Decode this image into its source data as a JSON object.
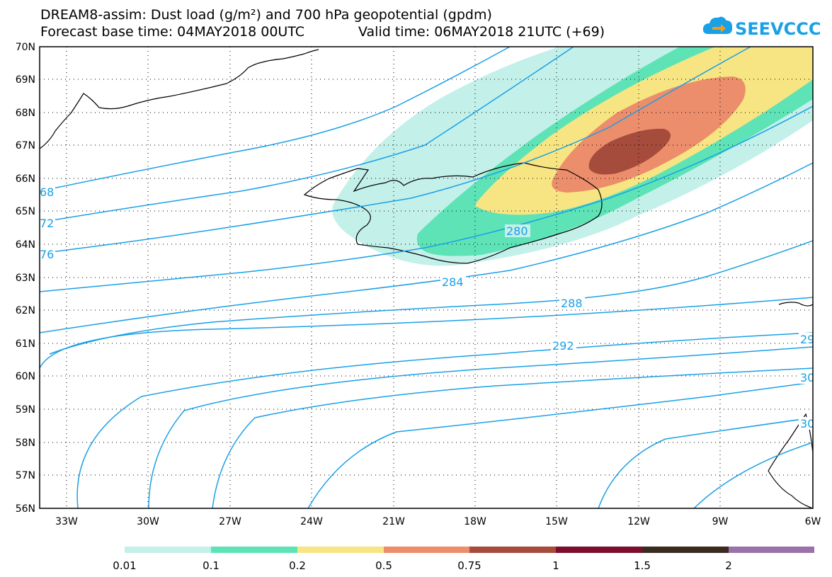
{
  "header": {
    "title": "DREAM8-assim: Dust load (g/m²) and 700 hPa geopotential (gpdm)",
    "forecast_base": "Forecast base time: 04MAY2018 00UTC",
    "valid_time": "Valid time: 06MAY2018 21UTC (+69)"
  },
  "logo": {
    "text": "SEEVCCC",
    "icon": "cloud-arrow-icon",
    "color": "#1aa0e6"
  },
  "map": {
    "lat_labels": [
      "70N",
      "69N",
      "68N",
      "67N",
      "66N",
      "65N",
      "64N",
      "63N",
      "62N",
      "61N",
      "60N",
      "59N",
      "58N",
      "57N",
      "56N"
    ],
    "lon_labels": [
      "33W",
      "30W",
      "27W",
      "24W",
      "21W",
      "18W",
      "15W",
      "12W",
      "9W",
      "6W"
    ],
    "lat_range": [
      56,
      70
    ],
    "lon_range": [
      -34.5,
      -6
    ],
    "grid": "dotted",
    "contour_color": "#1aa0e6",
    "contour_labels": [
      "68",
      "72",
      "76",
      "280",
      "284",
      "288",
      "292",
      "29",
      "30",
      "30"
    ],
    "land_outline_color": "#000000"
  },
  "colorbar": {
    "colors": [
      "#c4f0ea",
      "#5ee3b6",
      "#f7e583",
      "#ec8d6c",
      "#a64c3c",
      "#7c0d2d",
      "#3a2a20",
      "#9a72a8"
    ],
    "labels": [
      "0.01",
      "0.1",
      "0.2",
      "0.5",
      "0.75",
      "1",
      "1.5",
      "2"
    ]
  }
}
